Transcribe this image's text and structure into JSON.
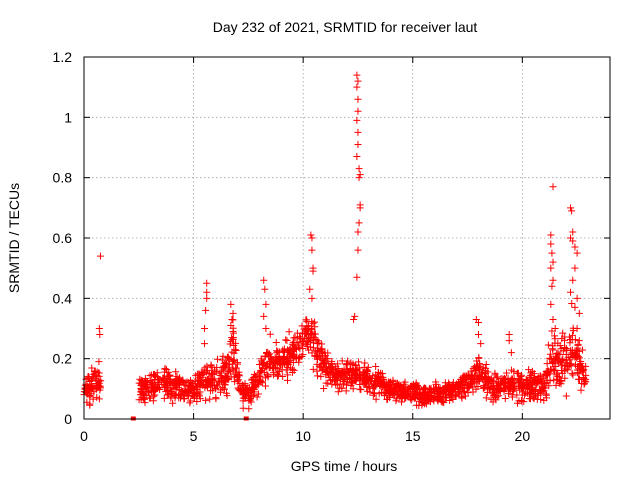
{
  "chart_data": {
    "type": "scatter",
    "title": "Day 232 of 2021, SRMTID for receiver laut",
    "xlabel": "GPS time / hours",
    "ylabel": "SRMTID / TECUs",
    "xlim": [
      0,
      24
    ],
    "ylim": [
      0,
      1.2
    ],
    "xticks": [
      0,
      5,
      10,
      15,
      20
    ],
    "yticks": [
      0,
      0.2,
      0.4,
      0.6,
      0.8,
      1,
      1.2
    ],
    "ytick_labels": [
      "0",
      "0.2",
      "0.4",
      "0.6",
      "0.8",
      "1",
      "1.2"
    ],
    "grid": true,
    "marker": "+",
    "color": "#ff0000",
    "series": [
      {
        "name": "SRMTID",
        "anchors": [
          [
            0.0,
            0.09,
            0.03
          ],
          [
            0.3,
            0.11,
            0.05
          ],
          [
            0.6,
            0.13,
            0.06
          ],
          [
            0.8,
            0.1,
            0.04
          ],
          [
            2.5,
            0.09,
            0.04
          ],
          [
            3.0,
            0.11,
            0.04
          ],
          [
            3.5,
            0.12,
            0.04
          ],
          [
            4.0,
            0.11,
            0.04
          ],
          [
            4.5,
            0.1,
            0.04
          ],
          [
            5.0,
            0.09,
            0.03
          ],
          [
            5.5,
            0.13,
            0.05
          ],
          [
            6.0,
            0.12,
            0.05
          ],
          [
            6.5,
            0.15,
            0.07
          ],
          [
            6.8,
            0.22,
            0.08
          ],
          [
            7.2,
            0.09,
            0.04
          ],
          [
            7.6,
            0.08,
            0.03
          ],
          [
            8.0,
            0.15,
            0.05
          ],
          [
            8.5,
            0.2,
            0.06
          ],
          [
            9.0,
            0.18,
            0.05
          ],
          [
            9.5,
            0.22,
            0.06
          ],
          [
            10.0,
            0.25,
            0.06
          ],
          [
            10.3,
            0.3,
            0.08
          ],
          [
            10.7,
            0.22,
            0.06
          ],
          [
            11.0,
            0.17,
            0.05
          ],
          [
            11.5,
            0.15,
            0.04
          ],
          [
            12.0,
            0.14,
            0.04
          ],
          [
            12.5,
            0.15,
            0.05
          ],
          [
            13.0,
            0.13,
            0.04
          ],
          [
            13.5,
            0.12,
            0.04
          ],
          [
            14.0,
            0.1,
            0.03
          ],
          [
            14.5,
            0.09,
            0.03
          ],
          [
            15.0,
            0.09,
            0.03
          ],
          [
            15.5,
            0.08,
            0.03
          ],
          [
            16.0,
            0.08,
            0.03
          ],
          [
            16.5,
            0.09,
            0.03
          ],
          [
            17.0,
            0.1,
            0.03
          ],
          [
            17.5,
            0.12,
            0.04
          ],
          [
            18.0,
            0.16,
            0.05
          ],
          [
            18.5,
            0.11,
            0.04
          ],
          [
            19.0,
            0.11,
            0.04
          ],
          [
            19.5,
            0.12,
            0.04
          ],
          [
            20.0,
            0.1,
            0.04
          ],
          [
            20.5,
            0.11,
            0.04
          ],
          [
            21.0,
            0.1,
            0.04
          ],
          [
            21.3,
            0.2,
            0.08
          ],
          [
            21.6,
            0.18,
            0.07
          ],
          [
            22.0,
            0.2,
            0.08
          ],
          [
            22.3,
            0.25,
            0.1
          ],
          [
            22.6,
            0.18,
            0.06
          ],
          [
            22.9,
            0.13,
            0.05
          ]
        ],
        "spikes": [
          [
            0.75,
            0.54
          ],
          [
            0.7,
            0.3
          ],
          [
            0.72,
            0.28
          ],
          [
            0.68,
            0.19
          ],
          [
            5.6,
            0.45
          ],
          [
            5.6,
            0.42
          ],
          [
            5.6,
            0.4
          ],
          [
            5.55,
            0.36
          ],
          [
            5.5,
            0.3
          ],
          [
            5.5,
            0.25
          ],
          [
            6.7,
            0.38
          ],
          [
            6.8,
            0.35
          ],
          [
            6.75,
            0.33
          ],
          [
            6.7,
            0.31
          ],
          [
            6.8,
            0.29
          ],
          [
            8.2,
            0.46
          ],
          [
            8.25,
            0.43
          ],
          [
            8.3,
            0.38
          ],
          [
            8.2,
            0.34
          ],
          [
            8.3,
            0.3
          ],
          [
            10.35,
            0.61
          ],
          [
            10.4,
            0.6
          ],
          [
            10.4,
            0.56
          ],
          [
            10.45,
            0.5
          ],
          [
            10.45,
            0.49
          ],
          [
            10.3,
            0.43
          ],
          [
            10.4,
            0.4
          ],
          [
            12.45,
            1.14
          ],
          [
            12.5,
            1.12
          ],
          [
            12.45,
            1.1
          ],
          [
            12.5,
            1.06
          ],
          [
            12.5,
            1.02
          ],
          [
            12.45,
            0.99
          ],
          [
            12.5,
            0.95
          ],
          [
            12.5,
            0.91
          ],
          [
            12.45,
            0.87
          ],
          [
            12.55,
            0.83
          ],
          [
            12.6,
            0.81
          ],
          [
            12.55,
            0.8
          ],
          [
            12.6,
            0.71
          ],
          [
            12.6,
            0.7
          ],
          [
            12.55,
            0.65
          ],
          [
            12.5,
            0.62
          ],
          [
            12.5,
            0.56
          ],
          [
            12.45,
            0.47
          ],
          [
            12.35,
            0.34
          ],
          [
            12.3,
            0.33
          ],
          [
            17.9,
            0.33
          ],
          [
            18.0,
            0.32
          ],
          [
            18.0,
            0.28
          ],
          [
            18.1,
            0.25
          ],
          [
            19.4,
            0.28
          ],
          [
            19.4,
            0.26
          ],
          [
            19.5,
            0.22
          ],
          [
            21.4,
            0.77
          ],
          [
            21.3,
            0.61
          ],
          [
            21.3,
            0.58
          ],
          [
            21.35,
            0.55
          ],
          [
            21.4,
            0.52
          ],
          [
            21.3,
            0.5
          ],
          [
            21.4,
            0.46
          ],
          [
            21.35,
            0.44
          ],
          [
            21.3,
            0.38
          ],
          [
            21.4,
            0.33
          ],
          [
            21.5,
            0.3
          ],
          [
            22.2,
            0.7
          ],
          [
            22.25,
            0.69
          ],
          [
            22.3,
            0.62
          ],
          [
            22.2,
            0.6
          ],
          [
            22.3,
            0.59
          ],
          [
            22.4,
            0.57
          ],
          [
            22.5,
            0.55
          ],
          [
            22.4,
            0.5
          ],
          [
            22.3,
            0.46
          ],
          [
            22.2,
            0.42
          ],
          [
            22.5,
            0.4
          ],
          [
            22.4,
            0.37
          ],
          [
            22.6,
            0.35
          ],
          [
            22.5,
            0.3
          ],
          [
            22.6,
            0.26
          ]
        ],
        "zero_points": [
          [
            2.25,
            0.0
          ],
          [
            7.4,
            0.0
          ]
        ]
      }
    ]
  }
}
